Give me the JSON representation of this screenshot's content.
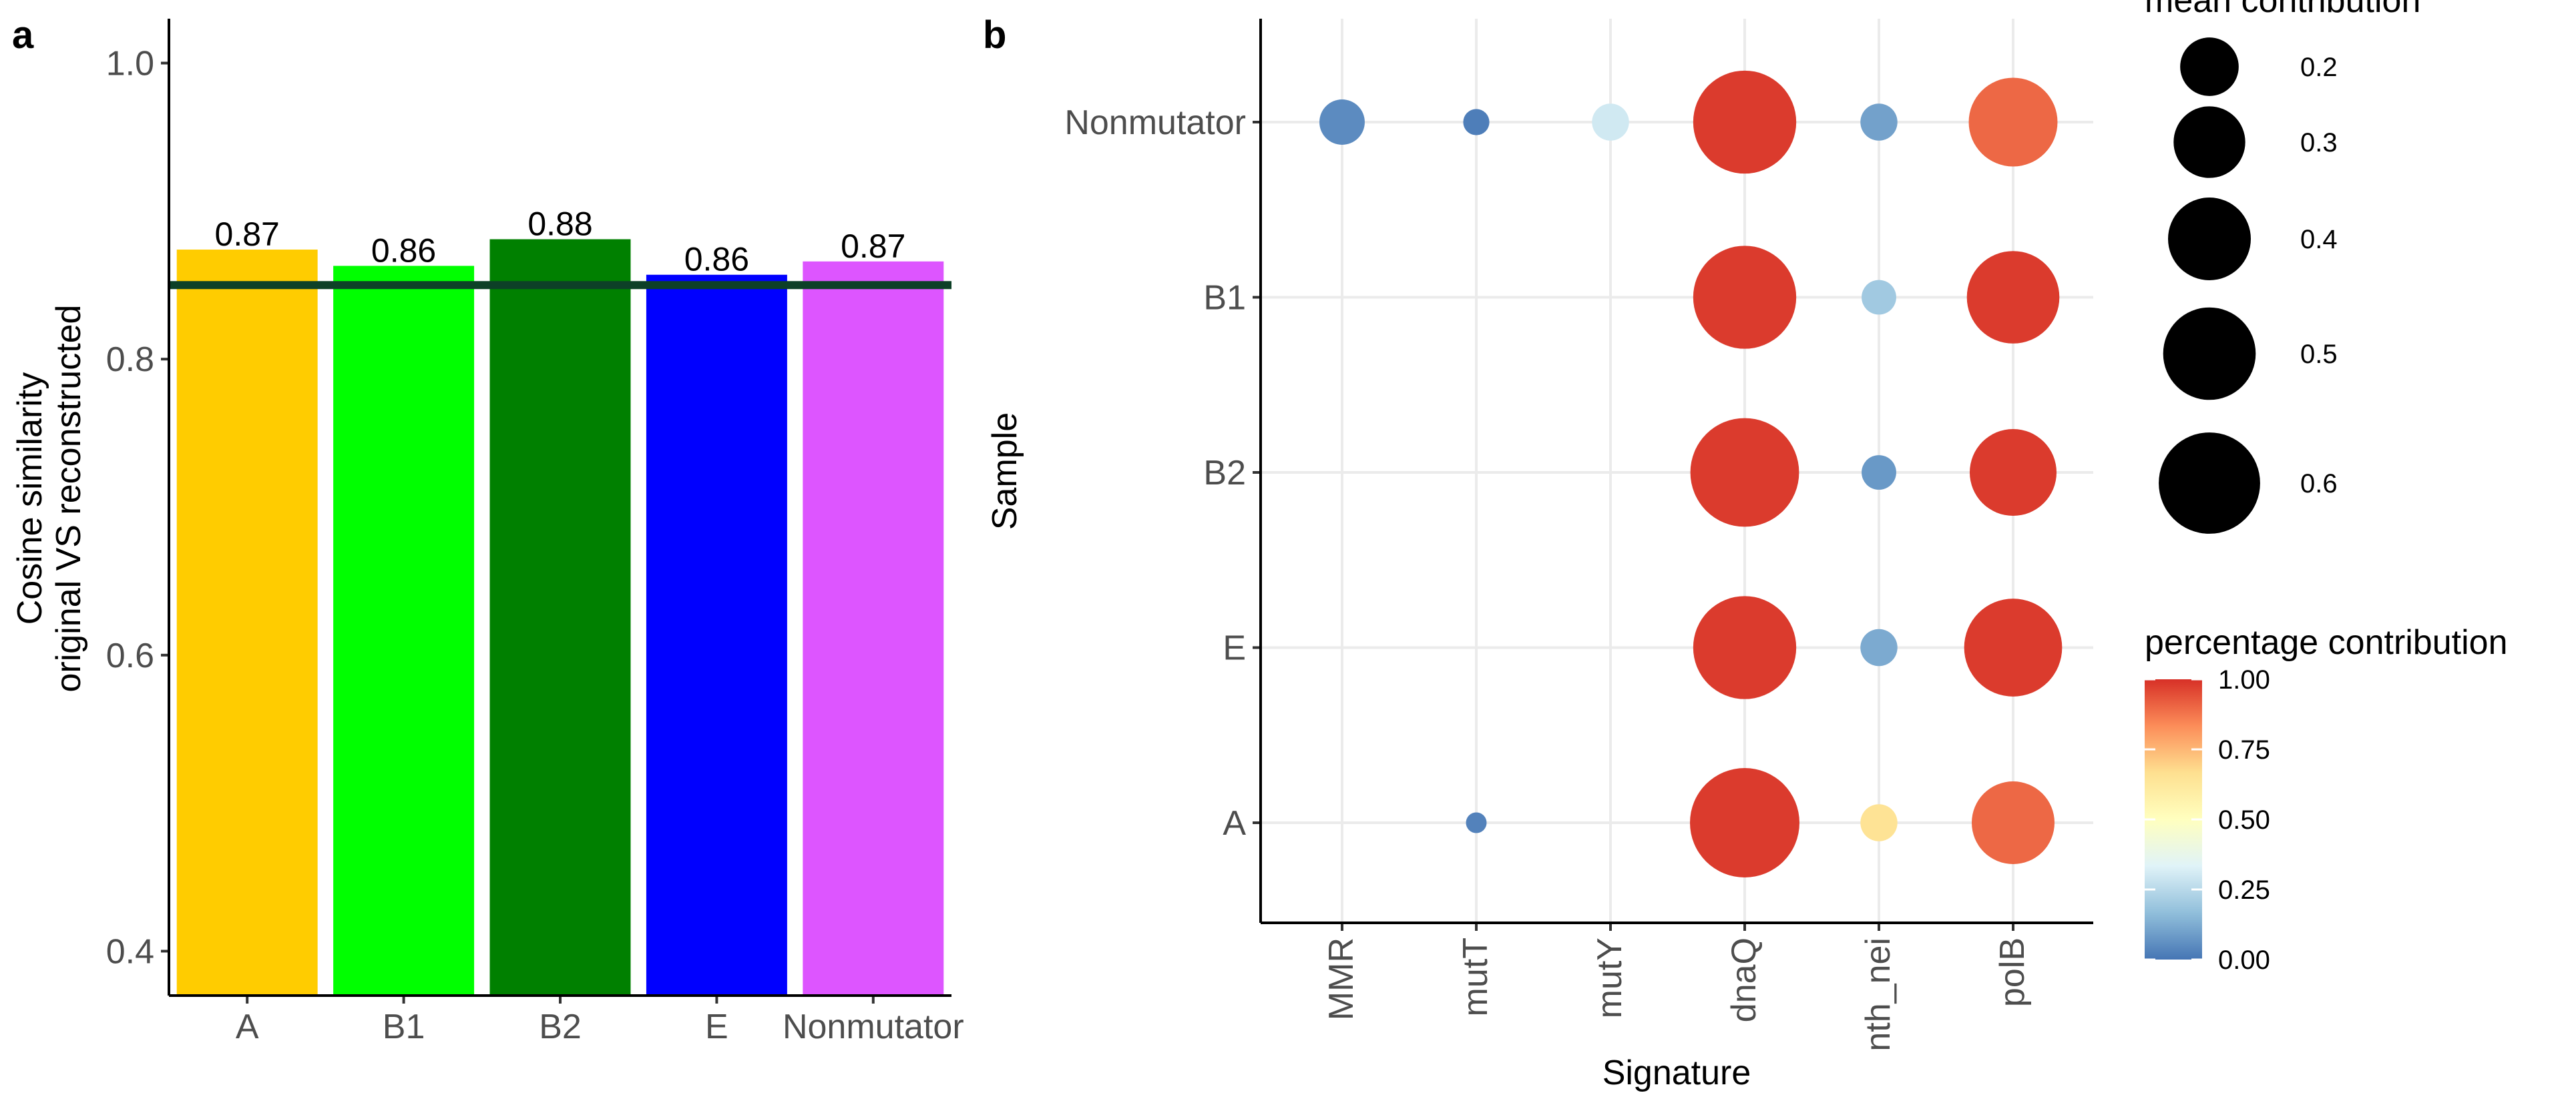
{
  "panels": {
    "a": "a",
    "b": "b"
  },
  "chart_data": [
    {
      "type": "bar",
      "panel": "a",
      "ylabel_lines": [
        "Cosine similarity",
        "original VS reconstructed"
      ],
      "xlabel": "",
      "categories": [
        "A",
        "B1",
        "B2",
        "E",
        "Nonmutator"
      ],
      "values": [
        0.874,
        0.863,
        0.881,
        0.857,
        0.866
      ],
      "bar_labels": [
        "0.87",
        "0.86",
        "0.88",
        "0.86",
        "0.87"
      ],
      "colors": [
        "#FFCC00",
        "#00FF00",
        "#008000",
        "#0000FF",
        "#DD55FF"
      ],
      "ylim": [
        0.37,
        1.03
      ],
      "yticks": [
        0.4,
        0.6,
        0.8,
        1.0
      ],
      "ytick_labels": [
        "0.4",
        "0.6",
        "0.8",
        "1.0"
      ],
      "reference_line": {
        "value": 0.85,
        "color": "#0D4027"
      },
      "grid": false
    },
    {
      "type": "scatter",
      "panel": "b",
      "xlabel": "Signature",
      "ylabel": "Sample",
      "x_categories": [
        "MMR",
        "mutT",
        "mutY",
        "dnaQ",
        "nth_nei",
        "polB"
      ],
      "y_categories": [
        "A",
        "E",
        "B2",
        "B1",
        "Nonmutator"
      ],
      "points": [
        {
          "sample": "Nonmutator",
          "signature": "MMR",
          "mean_contribution": 0.12,
          "percentage_contribution": 0.05
        },
        {
          "sample": "Nonmutator",
          "signature": "mutT",
          "mean_contribution": 0.04,
          "percentage_contribution": 0.02
        },
        {
          "sample": "Nonmutator",
          "signature": "mutY",
          "mean_contribution": 0.08,
          "percentage_contribution": 0.3
        },
        {
          "sample": "Nonmutator",
          "signature": "dnaQ",
          "mean_contribution": 0.62,
          "percentage_contribution": 0.98
        },
        {
          "sample": "Nonmutator",
          "signature": "nth_nei",
          "mean_contribution": 0.08,
          "percentage_contribution": 0.1
        },
        {
          "sample": "Nonmutator",
          "signature": "polB",
          "mean_contribution": 0.46,
          "percentage_contribution": 0.9
        },
        {
          "sample": "B1",
          "signature": "dnaQ",
          "mean_contribution": 0.62,
          "percentage_contribution": 0.98
        },
        {
          "sample": "B1",
          "signature": "nth_nei",
          "mean_contribution": 0.07,
          "percentage_contribution": 0.2
        },
        {
          "sample": "B1",
          "signature": "polB",
          "mean_contribution": 0.5,
          "percentage_contribution": 0.98
        },
        {
          "sample": "B2",
          "signature": "dnaQ",
          "mean_contribution": 0.69,
          "percentage_contribution": 0.98
        },
        {
          "sample": "B2",
          "signature": "nth_nei",
          "mean_contribution": 0.07,
          "percentage_contribution": 0.08
        },
        {
          "sample": "B2",
          "signature": "polB",
          "mean_contribution": 0.44,
          "percentage_contribution": 0.98
        },
        {
          "sample": "E",
          "signature": "dnaQ",
          "mean_contribution": 0.62,
          "percentage_contribution": 0.98
        },
        {
          "sample": "E",
          "signature": "nth_nei",
          "mean_contribution": 0.08,
          "percentage_contribution": 0.12
        },
        {
          "sample": "E",
          "signature": "polB",
          "mean_contribution": 0.56,
          "percentage_contribution": 0.98
        },
        {
          "sample": "A",
          "signature": "mutT",
          "mean_contribution": 0.025,
          "percentage_contribution": 0.03
        },
        {
          "sample": "A",
          "signature": "dnaQ",
          "mean_contribution": 0.7,
          "percentage_contribution": 0.98
        },
        {
          "sample": "A",
          "signature": "nth_nei",
          "mean_contribution": 0.08,
          "percentage_contribution": 0.65
        },
        {
          "sample": "A",
          "signature": "polB",
          "mean_contribution": 0.4,
          "percentage_contribution": 0.9
        }
      ],
      "size_legend": {
        "title": "mean contribution",
        "breaks": [
          0.2,
          0.3,
          0.4,
          0.5,
          0.6
        ],
        "labels": [
          "0.2",
          "0.3",
          "0.4",
          "0.5",
          "0.6"
        ]
      },
      "color_legend": {
        "title": "percentage contribution",
        "breaks": [
          0.0,
          0.25,
          0.5,
          0.75,
          1.0
        ],
        "labels": [
          "0.00",
          "0.25",
          "0.50",
          "0.75",
          "1.00"
        ],
        "palette": [
          "#4575B4",
          "#91BFDB",
          "#E0F3F8",
          "#FFFFBF",
          "#FEE090",
          "#FC8D59",
          "#D73027"
        ]
      },
      "grid": true
    }
  ]
}
